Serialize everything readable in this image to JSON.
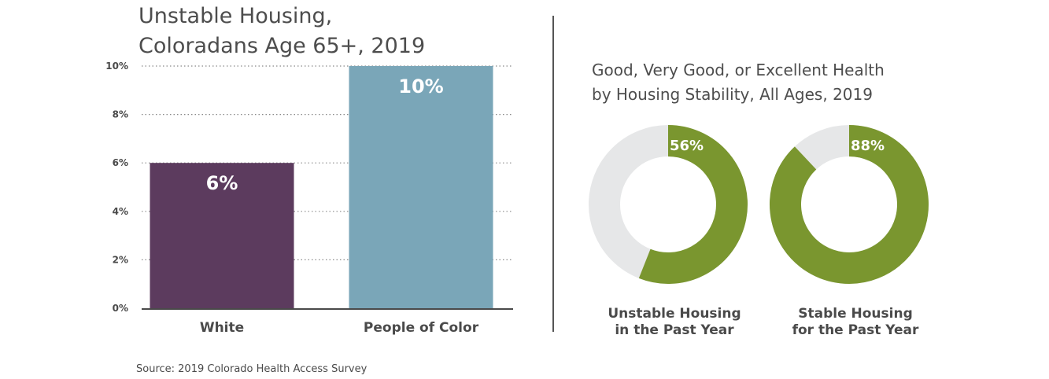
{
  "source": "Source: 2019 Colorado Health Access Survey",
  "chart_data": [
    {
      "type": "bar",
      "title_lines": [
        "Unstable Housing,",
        "Coloradans Age 65+, 2019"
      ],
      "categories": [
        "White",
        "People of Color"
      ],
      "values": [
        6,
        10
      ],
      "value_labels": [
        "6%",
        "10%"
      ],
      "colors": [
        "#5c3b5e",
        "#7aa6b8"
      ],
      "ylim": [
        0,
        10
      ],
      "yticks": [
        0,
        2,
        4,
        6,
        8,
        10
      ],
      "ytick_labels": [
        "0%",
        "2%",
        "4%",
        "6%",
        "8%",
        "10%"
      ],
      "grid": "dotted",
      "xlabel": "",
      "ylabel": ""
    },
    {
      "type": "pie",
      "title_lines": [
        "Good, Very Good, or Excellent Health",
        "by Housing Stability, All Ages, 2019"
      ],
      "donuts": [
        {
          "label_lines": [
            "Unstable Housing",
            "in the Past Year"
          ],
          "value": 56,
          "value_label": "56%"
        },
        {
          "label_lines": [
            "Stable Housing",
            "for the Past Year"
          ],
          "value": 88,
          "value_label": "88%"
        }
      ],
      "colors": {
        "filled": "#7a962f",
        "remainder": "#e6e7e8"
      }
    }
  ]
}
